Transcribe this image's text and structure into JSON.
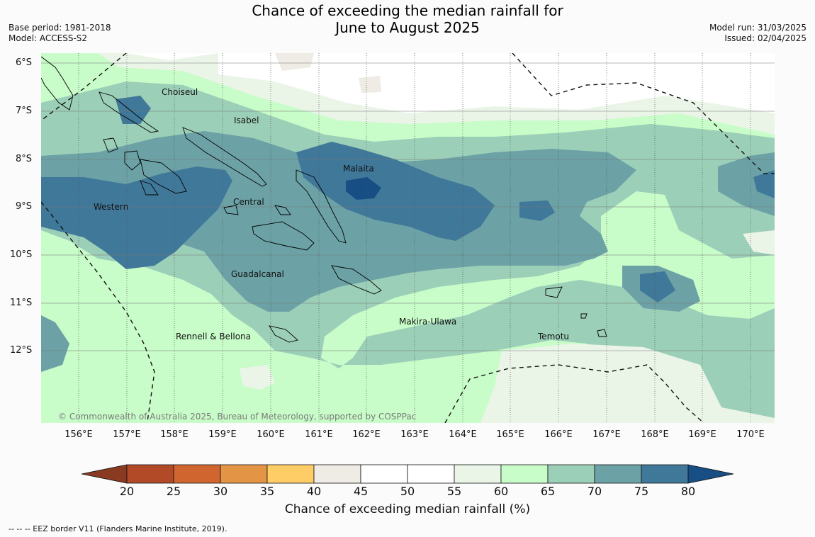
{
  "title_line1": "Chance of exceeding the median rainfall for",
  "title_line2": "June to August 2025",
  "meta_left": {
    "base_period": "Base period: 1981-2018",
    "model": "Model: ACCESS-S2"
  },
  "meta_right": {
    "model_run": "Model run: 31/03/2025",
    "issued": "Issued: 02/04/2025"
  },
  "map": {
    "lat_labels": [
      "6°S",
      "7°S",
      "8°S",
      "9°S",
      "10°S",
      "11°S",
      "12°S"
    ],
    "lon_labels": [
      "156°E",
      "157°E",
      "158°E",
      "159°E",
      "160°E",
      "161°E",
      "162°E",
      "163°E",
      "164°E",
      "165°E",
      "166°E",
      "167°E",
      "168°E",
      "169°E",
      "170°E"
    ],
    "places": [
      {
        "name": "Choiseul"
      },
      {
        "name": "Isabel"
      },
      {
        "name": "Malaita"
      },
      {
        "name": "Western"
      },
      {
        "name": "Central"
      },
      {
        "name": "Guadalcanal"
      },
      {
        "name": "Makira-Ulawa"
      },
      {
        "name": "Rennell & Bellona"
      },
      {
        "name": "Temotu"
      }
    ],
    "copyright": "© Commonwealth of Australia 2025, Bureau of Meteorology, supported by COSPPac"
  },
  "colorbar": {
    "ticks": [
      "20",
      "25",
      "30",
      "35",
      "40",
      "45",
      "50",
      "55",
      "60",
      "65",
      "70",
      "75",
      "80"
    ],
    "colors": {
      "below_20": "#8b3a22",
      "20_25": "#b24a28",
      "25_30": "#d0652f",
      "30_35": "#e49445",
      "35_40": "#ffcd66",
      "40_45": "#efebe5",
      "45_50": "#ffffff",
      "50_55": "#ffffff",
      "55_60": "#eaf5e8",
      "60_65": "#c8fcc8",
      "65_70": "#9ccfb8",
      "70_75": "#6ca2a6",
      "75_80": "#40789a",
      "above_80": "#174f85"
    },
    "title": "Chance of exceeding median rainfall (%)"
  },
  "footnote": "--  --  -- EEZ border V11 (Flanders Marine Institute, 2019)."
}
